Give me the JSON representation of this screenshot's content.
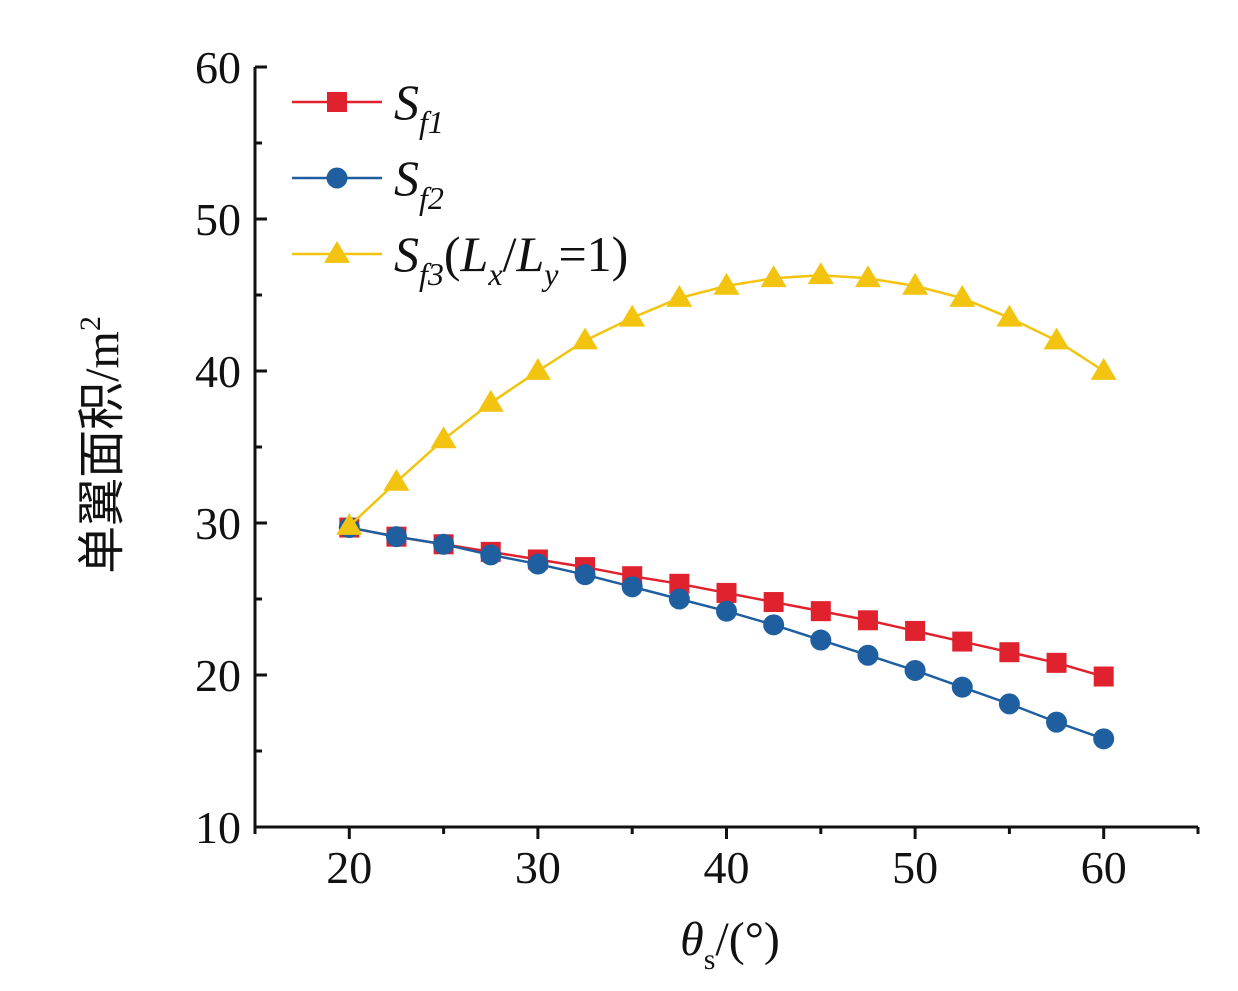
{
  "chart_data": {
    "type": "line",
    "xlabel": {
      "main": "θ",
      "sub": "s",
      "rest": "/(°)"
    },
    "ylabel": {
      "main": "单翼面积/m",
      "sup": "2"
    },
    "xlim": [
      15,
      65
    ],
    "ylim": [
      10,
      60
    ],
    "xticks": [
      "20",
      "30",
      "40",
      "50",
      "60"
    ],
    "yticks": [
      "10",
      "20",
      "30",
      "40",
      "50",
      "60"
    ],
    "grid": false,
    "legend_position": "top-left",
    "series": [
      {
        "name": "S_f1",
        "legend": {
          "base": "S",
          "sub": "f1",
          "suffix": ""
        },
        "color": "#e0222e",
        "marker": "square",
        "x": [
          20,
          22.5,
          25,
          27.5,
          30,
          32.5,
          35,
          37.5,
          40,
          42.5,
          45,
          47.5,
          50,
          52.5,
          55,
          57.5,
          60
        ],
        "y": [
          29.7,
          29.1,
          28.6,
          28.1,
          27.6,
          27.1,
          26.5,
          26.0,
          25.4,
          24.8,
          24.2,
          23.6,
          22.9,
          22.2,
          21.5,
          20.8,
          19.9
        ]
      },
      {
        "name": "S_f2",
        "legend": {
          "base": "S",
          "sub": "f2",
          "suffix": ""
        },
        "color": "#1f5fa0",
        "marker": "circle",
        "x": [
          20,
          22.5,
          25,
          27.5,
          30,
          32.5,
          35,
          37.5,
          40,
          42.5,
          45,
          47.5,
          50,
          52.5,
          55,
          57.5,
          60
        ],
        "y": [
          29.7,
          29.1,
          28.6,
          27.9,
          27.3,
          26.6,
          25.8,
          25.0,
          24.2,
          23.3,
          22.3,
          21.3,
          20.3,
          19.2,
          18.1,
          16.9,
          15.8
        ]
      },
      {
        "name": "S_f3(L_x/L_y=1)",
        "legend": {
          "base": "S",
          "sub": "f3",
          "suffix": "(Lx/Ly=1)"
        },
        "color": "#f2c40f",
        "marker": "triangle",
        "x": [
          20,
          22.5,
          25,
          27.5,
          30,
          32.5,
          35,
          37.5,
          40,
          42.5,
          45,
          47.5,
          50,
          52.5,
          55,
          57.5,
          60
        ],
        "y": [
          29.8,
          32.7,
          35.5,
          37.9,
          40.0,
          42.0,
          43.5,
          44.8,
          45.6,
          46.1,
          46.3,
          46.1,
          45.6,
          44.8,
          43.5,
          42.0,
          40.0
        ]
      }
    ]
  }
}
